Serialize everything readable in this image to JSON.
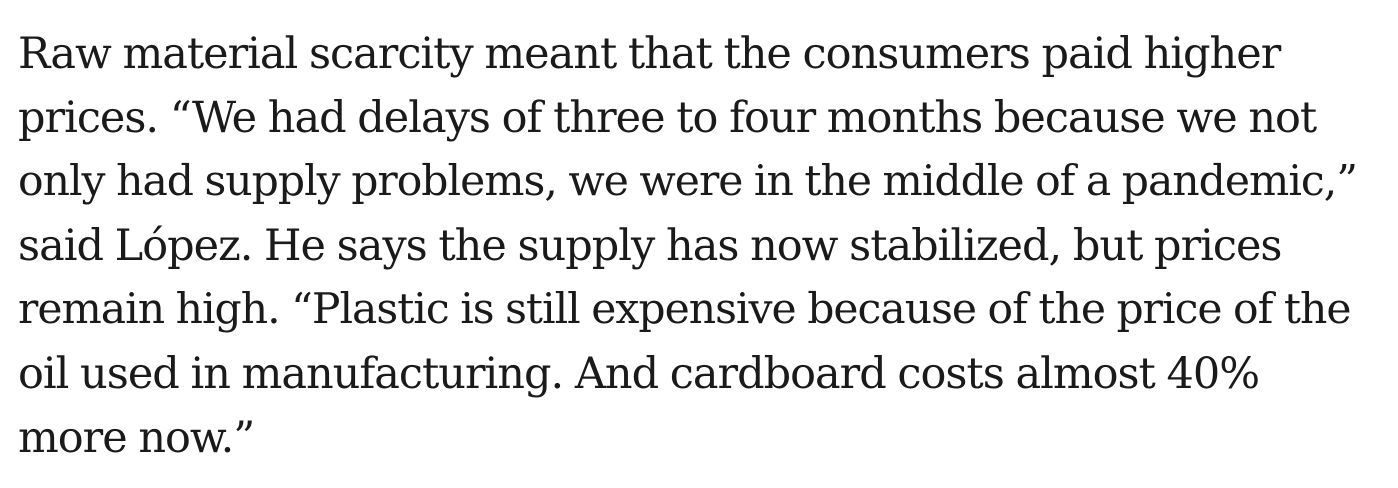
{
  "article": {
    "paragraph_lines": [
      "Raw material scarcity meant that the consumers paid higher",
      "prices. “We had delays of three to four months because we not",
      "only had supply problems, we were in the middle of a pandemic,”",
      "said López. He says the supply has now stabilized, but prices",
      "remain high. “Plastic is still expensive because of the price of the",
      "oil used in manufacturing. And cardboard costs almost 40%",
      "more now.”"
    ]
  },
  "colors": {
    "text": "#1a1a1a",
    "background": "#ffffff"
  }
}
